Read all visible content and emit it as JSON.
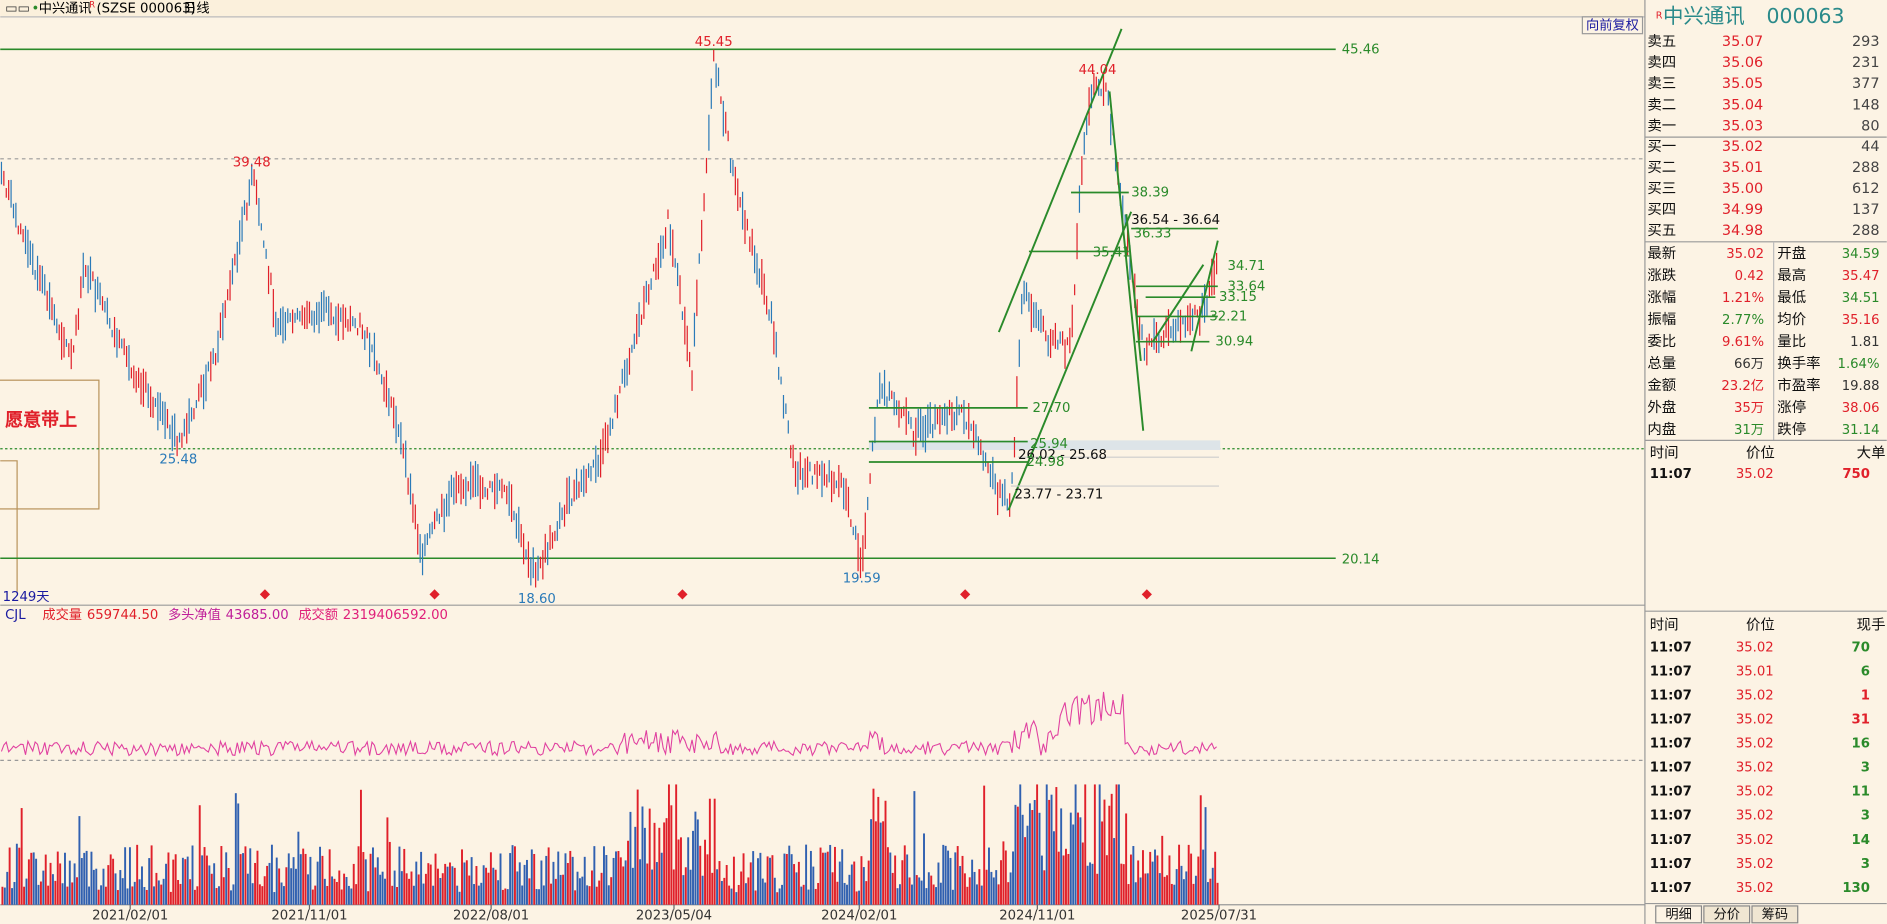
{
  "title_bar": {
    "name": "中兴通讯",
    "mark": "R",
    "code": "(SZSE 000063)",
    "period": "日线"
  },
  "main_chart": {
    "restore_button": "向前复权",
    "side_note": "愿意带上",
    "days_label": "1249天",
    "annotations": [
      "45.46",
      "45.45",
      "39.48",
      "44.04",
      "25.48",
      "18.60",
      "19.59",
      "20.14",
      "38.39",
      "36.54 - 36.64",
      "36.33",
      "35.41",
      "34.71",
      "33.64",
      "33.15",
      "32.21",
      "30.94",
      "27.70",
      "25.94",
      "26.02 - 25.68",
      "24.98",
      "23.77 - 23.71"
    ]
  },
  "indicator": {
    "name": "CJL",
    "items": [
      {
        "label": "成交量",
        "value": "659744.50"
      },
      {
        "label": "多头净值",
        "value": "43685.00"
      },
      {
        "label": "成交额",
        "value": "2319406592.00"
      }
    ]
  },
  "x_axis_dates": [
    "2021/02/01",
    "2021/11/01",
    "2022/08/01",
    "2023/05/04",
    "2024/02/01",
    "2024/11/01",
    "2025/07/31"
  ],
  "quote": {
    "mark": "R",
    "name": "中兴通讯",
    "code": "000063",
    "asks": [
      {
        "label": "卖五",
        "price": "35.07",
        "volume": "293"
      },
      {
        "label": "卖四",
        "price": "35.06",
        "volume": "231"
      },
      {
        "label": "卖三",
        "price": "35.05",
        "volume": "377"
      },
      {
        "label": "卖二",
        "price": "35.04",
        "volume": "148"
      },
      {
        "label": "卖一",
        "price": "35.03",
        "volume": "80"
      }
    ],
    "bids": [
      {
        "label": "买一",
        "price": "35.02",
        "volume": "44"
      },
      {
        "label": "买二",
        "price": "35.01",
        "volume": "288"
      },
      {
        "label": "买三",
        "price": "35.00",
        "volume": "612"
      },
      {
        "label": "买四",
        "price": "34.99",
        "volume": "137"
      },
      {
        "label": "买五",
        "price": "34.98",
        "volume": "288"
      }
    ],
    "stats_left": [
      {
        "label": "最新",
        "value": "35.02"
      },
      {
        "label": "涨跌",
        "value": "0.42"
      },
      {
        "label": "涨幅",
        "value": "1.21%"
      },
      {
        "label": "振幅",
        "value": "2.77%"
      },
      {
        "label": "委比",
        "value": "9.61%"
      },
      {
        "label": "总量",
        "value": "66万"
      },
      {
        "label": "金额",
        "value": "23.2亿"
      },
      {
        "label": "外盘",
        "value": "35万"
      },
      {
        "label": "内盘",
        "value": "31万"
      }
    ],
    "stats_right": [
      {
        "label": "开盘",
        "value": "34.59"
      },
      {
        "label": "最高",
        "value": "35.47"
      },
      {
        "label": "最低",
        "value": "34.51"
      },
      {
        "label": "均价",
        "value": "35.16"
      },
      {
        "label": "量比",
        "value": "1.81"
      },
      {
        "label": "换手率",
        "value": "1.64%"
      },
      {
        "label": "市盈率",
        "value": "19.88"
      },
      {
        "label": "涨停",
        "value": "38.06"
      },
      {
        "label": "跌停",
        "value": "31.14"
      }
    ]
  },
  "big_orders": {
    "header": [
      "时间",
      "价位",
      "大单"
    ],
    "rows": [
      [
        "11:07",
        "35.02",
        "750"
      ]
    ]
  },
  "trades": {
    "header": [
      "时间",
      "价位",
      "现手"
    ],
    "rows": [
      [
        "11:07",
        "35.02",
        "70"
      ],
      [
        "11:07",
        "35.01",
        "6"
      ],
      [
        "11:07",
        "35.02",
        "1"
      ],
      [
        "11:07",
        "35.02",
        "31"
      ],
      [
        "11:07",
        "35.02",
        "16"
      ],
      [
        "11:07",
        "35.02",
        "3"
      ],
      [
        "11:07",
        "35.02",
        "11"
      ],
      [
        "11:07",
        "35.02",
        "3"
      ],
      [
        "11:07",
        "35.02",
        "14"
      ],
      [
        "11:07",
        "35.02",
        "3"
      ],
      [
        "11:07",
        "35.02",
        "130"
      ]
    ]
  },
  "tabs": [
    "明细",
    "分价",
    "筹码"
  ]
}
